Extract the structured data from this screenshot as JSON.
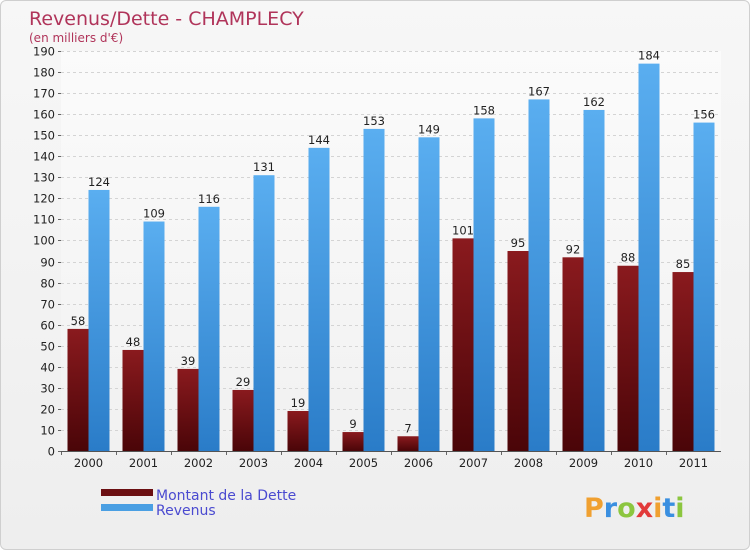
{
  "chart_data": {
    "type": "bar",
    "title": "Revenus/Dette - CHAMPLECY",
    "subtitle": "(en milliers d'€)",
    "categories": [
      "2000",
      "2001",
      "2002",
      "2003",
      "2004",
      "2005",
      "2006",
      "2007",
      "2008",
      "2009",
      "2010",
      "2011"
    ],
    "series": [
      {
        "name": "Montant de la Dette",
        "color": "#7a1418",
        "values": [
          58,
          48,
          39,
          29,
          19,
          9,
          7,
          101,
          95,
          92,
          88,
          85
        ]
      },
      {
        "name": "Revenus",
        "color": "#4a9fe3",
        "values": [
          124,
          109,
          116,
          131,
          144,
          153,
          149,
          158,
          167,
          162,
          184,
          156
        ]
      }
    ],
    "ylim": [
      0,
      190
    ],
    "ytick_step": 10,
    "grid": true,
    "legend_position": "bottom-left"
  },
  "logo": {
    "letters": [
      "P",
      "r",
      "o",
      "x",
      "i",
      "t",
      "i"
    ],
    "colors": [
      "#f0a030",
      "#3a8fe0",
      "#8cc63f",
      "#e23a3a",
      "#f0a030",
      "#3a8fe0",
      "#8cc63f"
    ]
  }
}
